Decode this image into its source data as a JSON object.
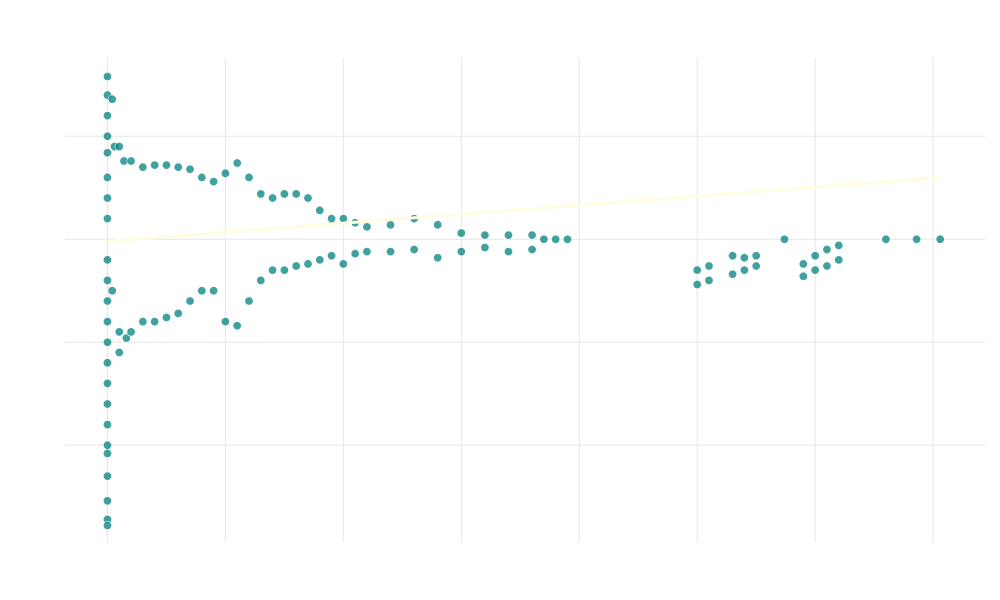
{
  "chart_data": {
    "type": "scatter",
    "title": "",
    "xlabel": "",
    "ylabel": "",
    "xlim": [
      -0.18,
      3.72
    ],
    "ylim": [
      -1.47,
      0.88
    ],
    "x_gridlines": [
      0,
      0.5,
      1,
      1.5,
      2,
      2.5,
      3,
      3.5
    ],
    "y_gridlines": [
      0.5,
      0,
      -0.5,
      -1
    ],
    "grid": true,
    "legend": "none",
    "colors": {
      "points": "#00827f",
      "point_edge": "#ffffff",
      "trend": "#fffde0",
      "grid": "#e6e6e6"
    },
    "trend_line": {
      "x": [
        0,
        3.53
      ],
      "y": [
        -0.01,
        0.3
      ]
    },
    "series": [
      {
        "values": [
          [
            0,
            0.79
          ],
          [
            0,
            0.7
          ],
          [
            0,
            0.6
          ],
          [
            0,
            0.5
          ],
          [
            0,
            0.42
          ],
          [
            0,
            0.3
          ],
          [
            0,
            0.2
          ],
          [
            0,
            0.1
          ],
          [
            0,
            -0.1
          ],
          [
            0,
            -0.2
          ],
          [
            0,
            -0.3
          ],
          [
            0,
            -0.4
          ],
          [
            0,
            -0.5
          ],
          [
            0,
            -0.6
          ],
          [
            0,
            -0.7
          ],
          [
            0,
            -0.8
          ],
          [
            0,
            -0.9
          ],
          [
            0,
            -1.0
          ],
          [
            0,
            -1.04
          ],
          [
            0,
            -1.15
          ],
          [
            0,
            -1.27
          ],
          [
            0,
            -1.36
          ],
          [
            0,
            -1.39
          ],
          [
            0.02,
            0.68
          ],
          [
            0.02,
            -0.25
          ],
          [
            0.03,
            0.45
          ],
          [
            0.05,
            -0.55
          ],
          [
            0.05,
            0.45
          ],
          [
            0.05,
            -0.45
          ],
          [
            0.07,
            0.38
          ],
          [
            0.08,
            -0.48
          ],
          [
            0.1,
            0.38
          ],
          [
            0.1,
            -0.45
          ],
          [
            0.15,
            0.35
          ],
          [
            0.15,
            -0.4
          ],
          [
            0.2,
            0.36
          ],
          [
            0.2,
            -0.4
          ],
          [
            0.25,
            0.36
          ],
          [
            0.25,
            -0.38
          ],
          [
            0.3,
            0.35
          ],
          [
            0.3,
            -0.36
          ],
          [
            0.35,
            0.34
          ],
          [
            0.35,
            -0.3
          ],
          [
            0.4,
            0.3
          ],
          [
            0.4,
            -0.25
          ],
          [
            0.45,
            0.28
          ],
          [
            0.45,
            -0.25
          ],
          [
            0.5,
            0.32
          ],
          [
            0.5,
            -0.4
          ],
          [
            0.55,
            0.37
          ],
          [
            0.55,
            -0.42
          ],
          [
            0.6,
            0.3
          ],
          [
            0.6,
            -0.3
          ],
          [
            0.65,
            0.22
          ],
          [
            0.65,
            -0.2
          ],
          [
            0.7,
            0.2
          ],
          [
            0.7,
            -0.15
          ],
          [
            0.75,
            0.22
          ],
          [
            0.75,
            -0.15
          ],
          [
            0.8,
            0.22
          ],
          [
            0.8,
            -0.13
          ],
          [
            0.85,
            0.2
          ],
          [
            0.85,
            -0.12
          ],
          [
            0.9,
            0.14
          ],
          [
            0.9,
            -0.1
          ],
          [
            0.95,
            0.1
          ],
          [
            0.95,
            -0.08
          ],
          [
            1.0,
            0.1
          ],
          [
            1.0,
            -0.12
          ],
          [
            1.05,
            0.08
          ],
          [
            1.05,
            -0.07
          ],
          [
            1.1,
            0.06
          ],
          [
            1.1,
            -0.06
          ],
          [
            1.2,
            0.07
          ],
          [
            1.2,
            -0.06
          ],
          [
            1.3,
            0.1
          ],
          [
            1.3,
            -0.05
          ],
          [
            1.4,
            0.07
          ],
          [
            1.4,
            -0.09
          ],
          [
            1.5,
            0.03
          ],
          [
            1.5,
            -0.06
          ],
          [
            1.6,
            0.02
          ],
          [
            1.6,
            -0.04
          ],
          [
            1.7,
            0.02
          ],
          [
            1.7,
            -0.06
          ],
          [
            1.8,
            0.02
          ],
          [
            1.8,
            -0.05
          ],
          [
            1.85,
            0.0
          ],
          [
            1.9,
            0.0
          ],
          [
            1.95,
            0.0
          ],
          [
            2.5,
            -0.15
          ],
          [
            2.5,
            -0.22
          ],
          [
            2.55,
            -0.13
          ],
          [
            2.55,
            -0.2
          ],
          [
            2.65,
            -0.08
          ],
          [
            2.65,
            -0.17
          ],
          [
            2.7,
            -0.09
          ],
          [
            2.7,
            -0.15
          ],
          [
            2.75,
            -0.08
          ],
          [
            2.75,
            -0.13
          ],
          [
            2.87,
            0.0
          ],
          [
            2.95,
            -0.12
          ],
          [
            2.95,
            -0.18
          ],
          [
            3.0,
            -0.08
          ],
          [
            3.0,
            -0.15
          ],
          [
            3.05,
            -0.05
          ],
          [
            3.05,
            -0.13
          ],
          [
            3.1,
            -0.03
          ],
          [
            3.1,
            -0.1
          ],
          [
            3.3,
            0.0
          ],
          [
            3.43,
            0.0
          ],
          [
            3.53,
            0.0
          ]
        ]
      }
    ]
  }
}
